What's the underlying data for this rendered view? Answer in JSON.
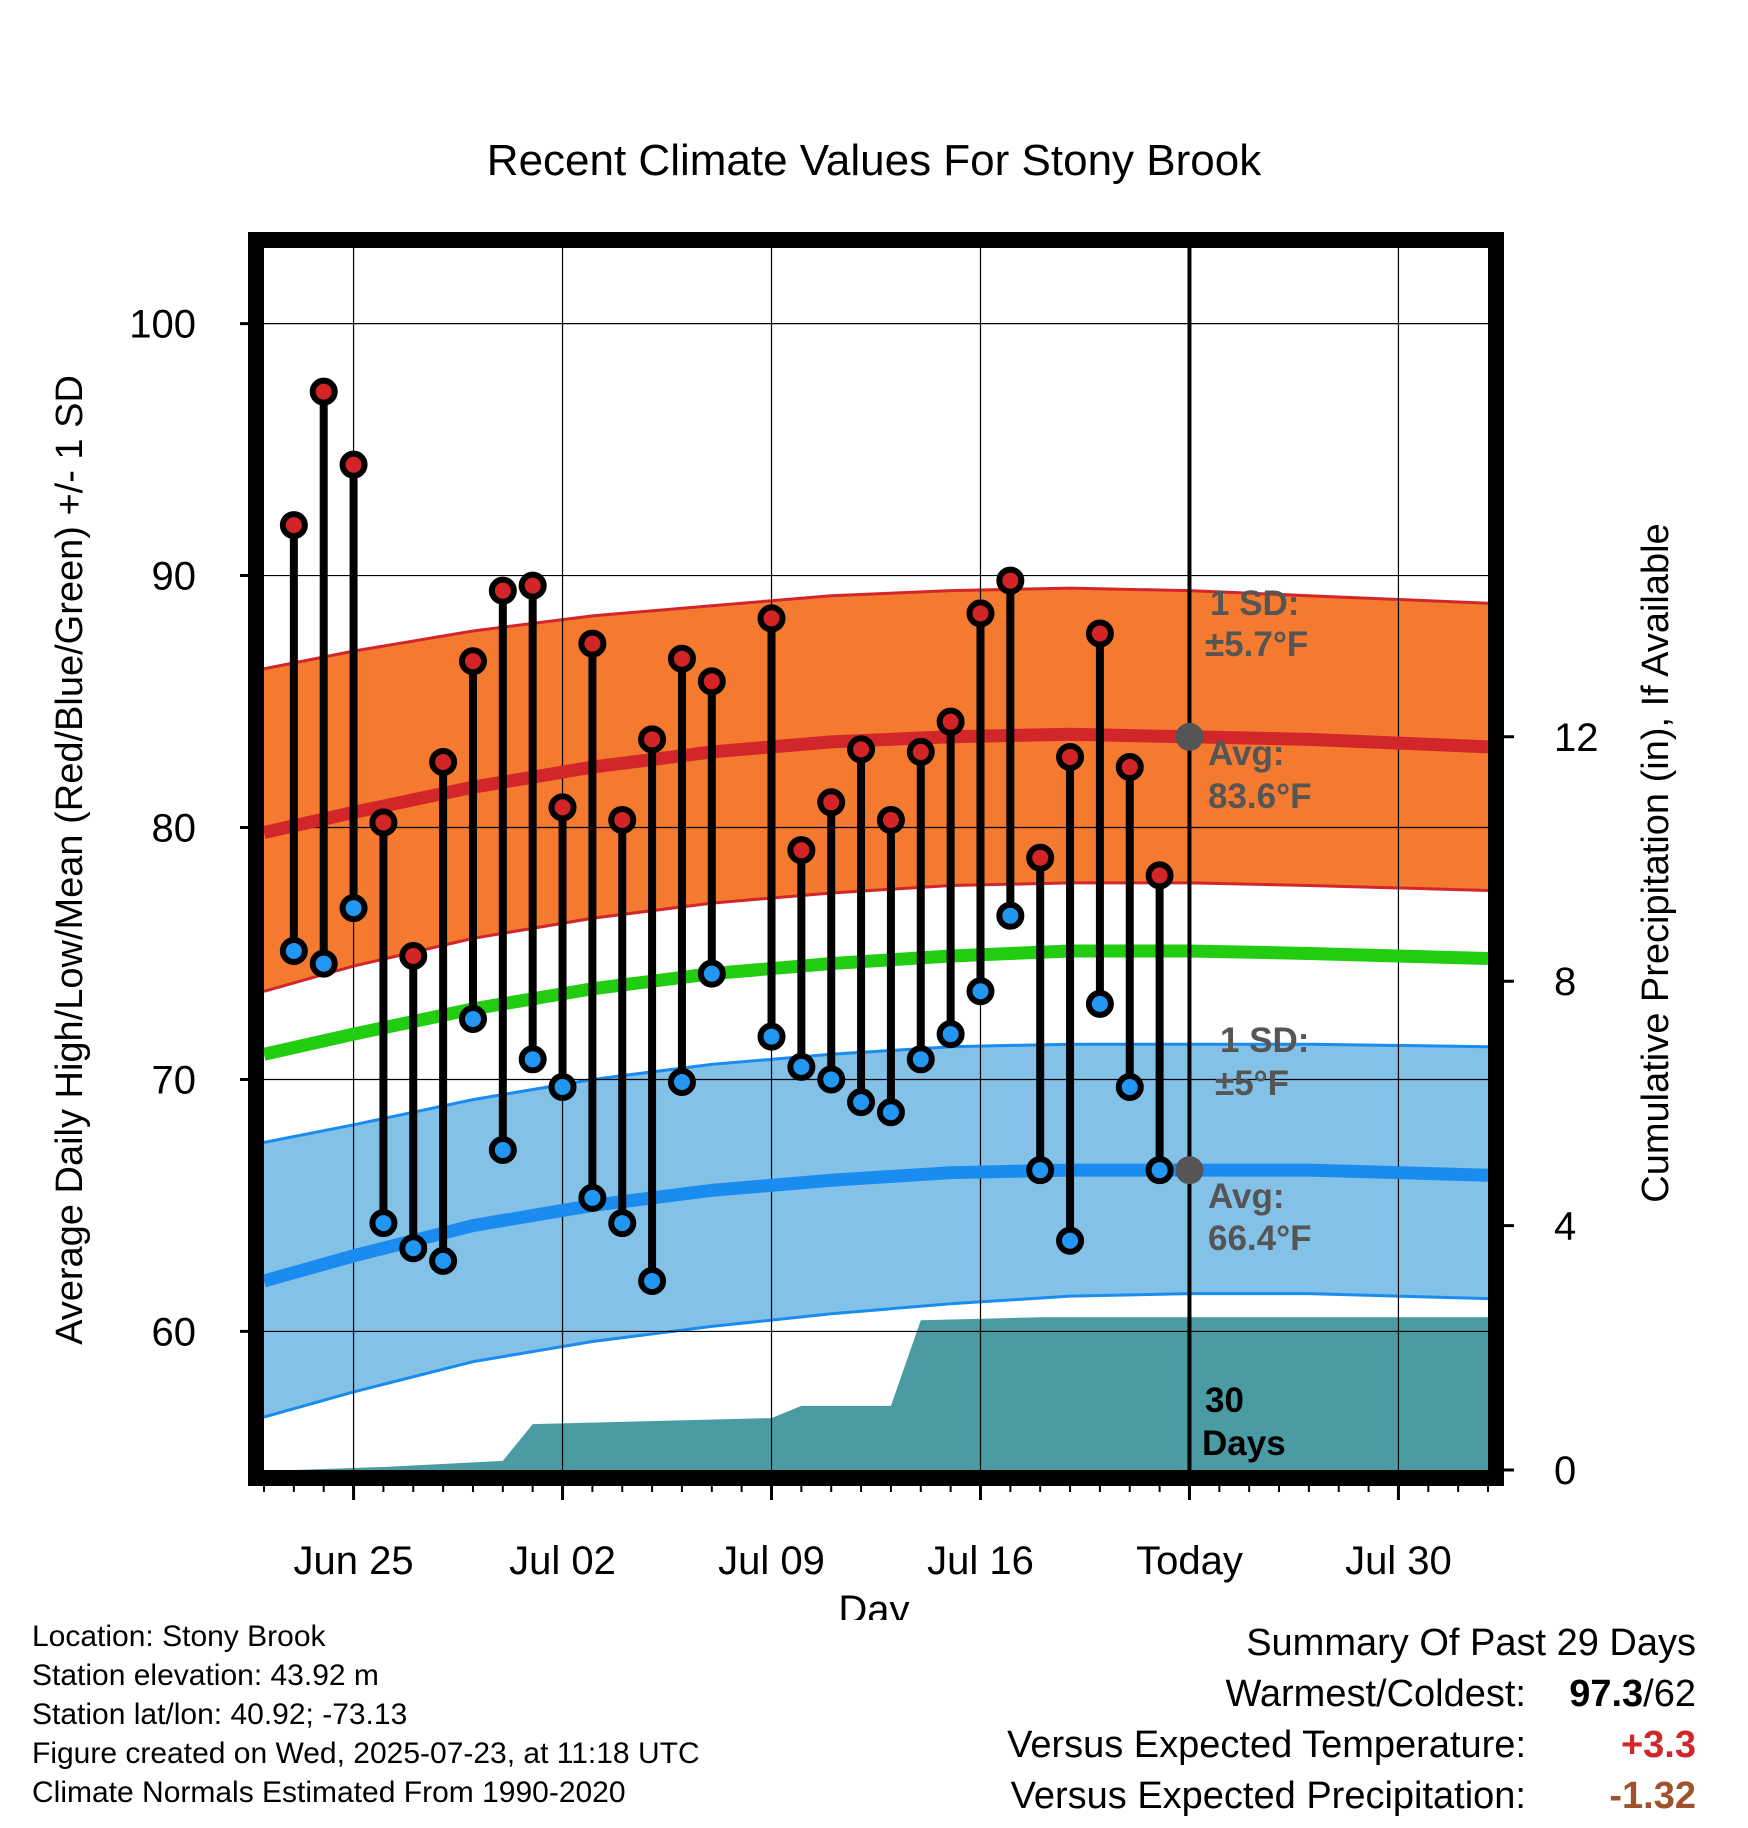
{
  "chart_data": {
    "type": "line",
    "title": "Recent Climate Values For Stony Brook",
    "xlabel": "Day",
    "ylabel": "Average Daily High/Low/Mean (Red/Blue/Green) +/- 1 SD",
    "y2label": "Cumulative Precipitation (in), If Available",
    "xticks": [
      "Jun 25",
      "Jul 02",
      "Jul 09",
      "Jul 16",
      "Today",
      "Jul 30"
    ],
    "yticks": [
      "60",
      "70",
      "80",
      "90",
      "100"
    ],
    "y2ticks": [
      "0",
      "4",
      "8",
      "12"
    ],
    "ylim": [
      54.5,
      103
    ],
    "y2lim": [
      0,
      20
    ],
    "x_start": "Jun 22",
    "x_end": "Aug 02",
    "today": "Jul 23",
    "grid": true,
    "normals": {
      "x": [
        "Jun 22",
        "Jun 25",
        "Jun 29",
        "Jul 03",
        "Jul 07",
        "Jul 11",
        "Jul 15",
        "Jul 19",
        "Jul 23",
        "Jul 27",
        "Aug 02"
      ],
      "high_avg": [
        79.8,
        80.6,
        81.6,
        82.4,
        83.0,
        83.4,
        83.6,
        83.7,
        83.6,
        83.5,
        83.2
      ],
      "high_upper": [
        86.3,
        87.0,
        87.8,
        88.4,
        88.8,
        89.2,
        89.4,
        89.5,
        89.4,
        89.2,
        88.9
      ],
      "high_lower": [
        73.5,
        74.5,
        75.6,
        76.4,
        77.0,
        77.4,
        77.7,
        77.8,
        77.8,
        77.7,
        77.5
      ],
      "mean": [
        71.0,
        71.8,
        72.8,
        73.6,
        74.2,
        74.6,
        74.9,
        75.1,
        75.1,
        75.0,
        74.8
      ],
      "low_avg": [
        62.0,
        63.0,
        64.2,
        65.0,
        65.6,
        66.0,
        66.3,
        66.4,
        66.4,
        66.4,
        66.2
      ],
      "low_upper": [
        67.5,
        68.2,
        69.2,
        70.0,
        70.6,
        71.0,
        71.3,
        71.4,
        71.4,
        71.4,
        71.3
      ],
      "low_lower": [
        56.6,
        57.6,
        58.8,
        59.6,
        60.2,
        60.7,
        61.1,
        61.4,
        61.5,
        61.5,
        61.3
      ]
    },
    "daily": {
      "x": [
        "Jun 23",
        "Jun 24",
        "Jun 25",
        "Jun 26",
        "Jun 27",
        "Jun 28",
        "Jun 29",
        "Jun 30",
        "Jul 01",
        "Jul 02",
        "Jul 03",
        "Jul 04",
        "Jul 05",
        "Jul 06",
        "Jul 07",
        "Jul 09",
        "Jul 10",
        "Jul 11",
        "Jul 12",
        "Jul 13",
        "Jul 14",
        "Jul 15",
        "Jul 16",
        "Jul 17",
        "Jul 18",
        "Jul 19",
        "Jul 20",
        "Jul 21",
        "Jul 22"
      ],
      "high": [
        92.0,
        97.3,
        94.4,
        80.2,
        74.9,
        82.6,
        86.6,
        89.4,
        89.6,
        80.8,
        87.3,
        80.3,
        83.5,
        86.7,
        85.8,
        88.3,
        79.1,
        81.0,
        83.1,
        80.3,
        83.0,
        84.2,
        88.5,
        89.8,
        78.8,
        82.8,
        87.7,
        82.4,
        78.1
      ],
      "low": [
        75.1,
        74.6,
        76.8,
        64.3,
        63.3,
        62.8,
        72.4,
        67.2,
        70.8,
        69.7,
        65.3,
        64.3,
        62.0,
        69.9,
        74.2,
        71.7,
        70.5,
        70.0,
        69.1,
        68.7,
        70.8,
        71.8,
        73.5,
        76.5,
        66.4,
        63.6,
        73.0,
        69.7,
        66.4
      ]
    },
    "precipitation": {
      "x": [
        "Jun 22",
        "Jun 23",
        "Jun 26",
        "Jun 30",
        "Jul 01",
        "Jul 09",
        "Jul 10",
        "Jul 13",
        "Jul 14",
        "Jul 18",
        "Aug 02"
      ],
      "values": [
        0.0,
        0.0,
        0.05,
        0.15,
        0.75,
        0.85,
        1.05,
        1.05,
        2.45,
        2.5,
        2.5
      ]
    },
    "annotations": {
      "high_sd": [
        "1 SD:",
        "±5.7°F"
      ],
      "high_avg": [
        "Avg:",
        "83.6°F"
      ],
      "low_sd": [
        "1 SD:",
        "±5°F"
      ],
      "low_avg": [
        "Avg:",
        "66.4°F"
      ],
      "precip_period": [
        "30",
        "Days"
      ]
    },
    "colors": {
      "high_band": "#f47a30",
      "high_line": "#d2262b",
      "mean_line": "#22cc11",
      "low_band": "#83c1e7",
      "low_line": "#1a8cf0",
      "precip": "#4a9ba3",
      "high_dot": "#d32428",
      "low_dot": "#2196f3",
      "annotation": "#555555",
      "warm": "#d2262b",
      "dry": "#a0522d"
    }
  },
  "metadata": {
    "location": "Location: Stony Brook",
    "elevation": "Station elevation: 43.92 m",
    "latlon": "Station lat/lon: 40.92; -73.13",
    "created": "Figure created on Wed, 2025-07-23, at 11:18 UTC",
    "normals": "Climate Normals Estimated From 1990-2020"
  },
  "summary": {
    "title": "Summary Of Past 29 Days",
    "warmest_coldest_label": "Warmest/Coldest:",
    "warmest_value": "97.3",
    "coldest_value": "/62",
    "temp_label": "Versus Expected Temperature:",
    "temp_value": "+3.3",
    "precip_label": "Versus Expected Precipitation:",
    "precip_value": "-1.32"
  }
}
